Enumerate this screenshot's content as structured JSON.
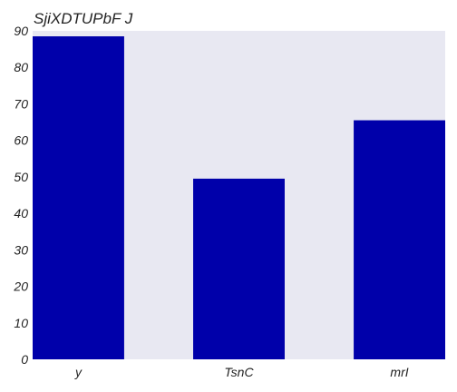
{
  "chart_data": {
    "type": "bar",
    "title": "SjiXDTUPbF J",
    "xlabel": "",
    "ylabel": "",
    "categories": [
      "y",
      "TsnC",
      "mrI"
    ],
    "values": [
      88.5,
      49.5,
      65.5
    ],
    "ylim": [
      0,
      90
    ],
    "yticks": [
      0,
      10,
      20,
      30,
      40,
      50,
      60,
      70,
      80,
      90
    ],
    "grid": false,
    "colors": {
      "bar": "#0000aa",
      "plot_background": "#e8e8f2",
      "text": "#222222"
    }
  }
}
